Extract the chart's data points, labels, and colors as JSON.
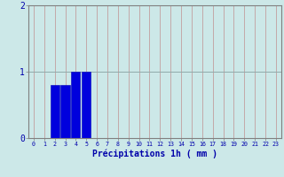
{
  "hours": [
    0,
    1,
    2,
    3,
    4,
    5,
    6,
    7,
    8,
    9,
    10,
    11,
    12,
    13,
    14,
    15,
    16,
    17,
    18,
    19,
    20,
    21,
    22,
    23
  ],
  "values": [
    0,
    0,
    0.8,
    0.8,
    1.0,
    1.0,
    0,
    0,
    0,
    0,
    0,
    0,
    0,
    0,
    0,
    0,
    0,
    0,
    0,
    0,
    0,
    0,
    0,
    0
  ],
  "bar_color": "#0000dd",
  "bar_edge_color": "#0000bb",
  "background_color": "#cce8e8",
  "grid_color_v": "#c09090",
  "grid_color_h": "#90aaaa",
  "xlabel": "Précipitations 1h ( mm )",
  "tick_color": "#0000aa",
  "ylim": [
    0,
    2
  ],
  "xlim": [
    -0.5,
    23.5
  ],
  "yticks": [
    0,
    1,
    2
  ],
  "xtick_labels": [
    "0",
    "1",
    "2",
    "3",
    "4",
    "5",
    "6",
    "7",
    "8",
    "9",
    "10",
    "11",
    "12",
    "13",
    "14",
    "15",
    "16",
    "17",
    "18",
    "19",
    "20",
    "21",
    "22",
    "23"
  ],
  "spine_color": "#808080",
  "bar_width": 0.85
}
